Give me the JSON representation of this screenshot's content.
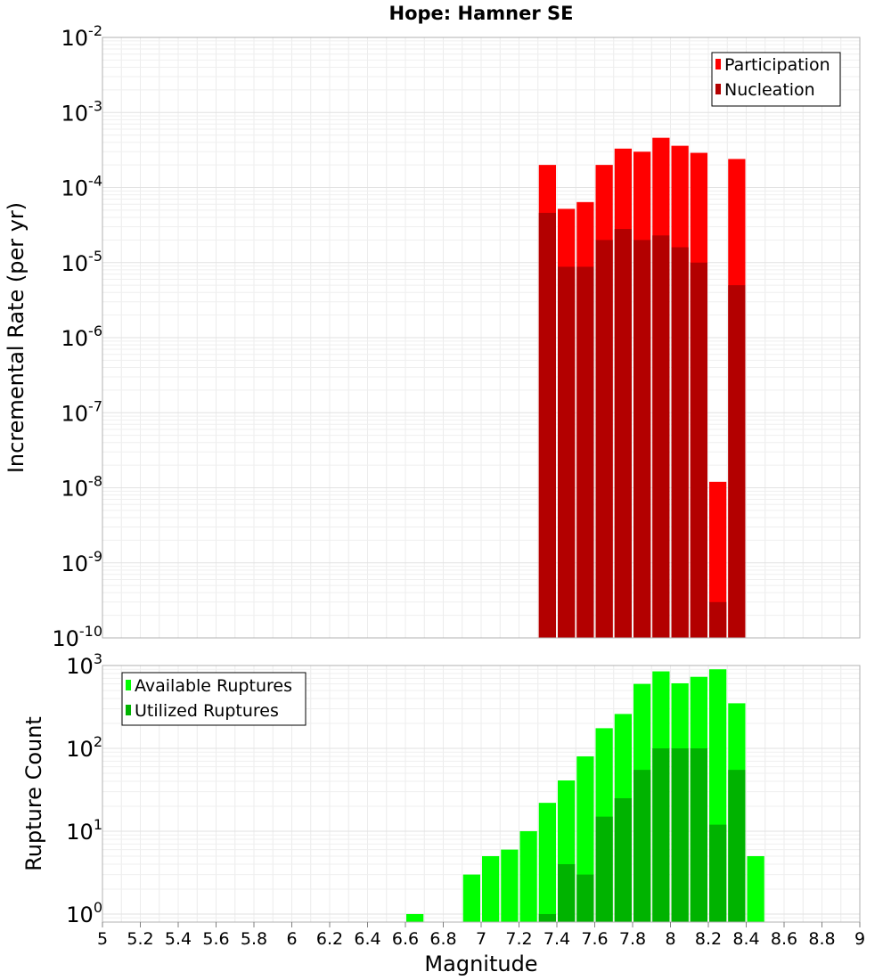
{
  "title": "Hope: Hamner SE",
  "xlabel": "Magnitude",
  "x_ticks": [
    "5",
    "5.2",
    "5.4",
    "5.6",
    "5.8",
    "6",
    "6.2",
    "6.4",
    "6.6",
    "6.8",
    "7",
    "7.2",
    "7.4",
    "7.6",
    "7.8",
    "8",
    "8.2",
    "8.4",
    "8.6",
    "8.8",
    "9"
  ],
  "chart_data": [
    {
      "type": "bar",
      "title": "Hope: Hamner SE",
      "xlabel": "Magnitude",
      "ylabel": "Incremental Rate (per yr)",
      "xlim": [
        5,
        9
      ],
      "ylim": [
        1e-10,
        0.01
      ],
      "y_scale": "log",
      "bin_width": 0.1,
      "grid": true,
      "legend_position": "top-right",
      "y_ticks": [
        {
          "base": "10",
          "exp": "-2"
        },
        {
          "base": "10",
          "exp": "-3"
        },
        {
          "base": "10",
          "exp": "-4"
        },
        {
          "base": "10",
          "exp": "-5"
        },
        {
          "base": "10",
          "exp": "-6"
        },
        {
          "base": "10",
          "exp": "-7"
        },
        {
          "base": "10",
          "exp": "-8"
        },
        {
          "base": "10",
          "exp": "-9"
        },
        {
          "base": "10",
          "exp": "-10"
        }
      ],
      "x": [
        7.35,
        7.45,
        7.55,
        7.65,
        7.75,
        7.85,
        7.95,
        8.05,
        8.15,
        8.25,
        8.35
      ],
      "series": [
        {
          "name": "Participation",
          "color": "#ff0000",
          "values": [
            0.0002,
            5.2e-05,
            6.4e-05,
            0.0002,
            0.00033,
            0.0003,
            0.00046,
            0.00036,
            0.00029,
            1.2e-08,
            0.00024
          ]
        },
        {
          "name": "Nucleation",
          "color": "#b30000",
          "values": [
            4.6e-05,
            8.8e-06,
            8.8e-06,
            2e-05,
            2.8e-05,
            2e-05,
            2.3e-05,
            1.6e-05,
            1e-05,
            3e-10,
            5e-06
          ]
        }
      ]
    },
    {
      "type": "bar",
      "xlabel": "Magnitude",
      "ylabel": "Rupture Count",
      "xlim": [
        5,
        9
      ],
      "ylim": [
        0.8,
        1000
      ],
      "y_scale": "log",
      "bin_width": 0.1,
      "grid": true,
      "legend_position": "top-left",
      "y_ticks": [
        {
          "base": "10",
          "exp": "3",
          "value": 1000
        },
        {
          "base": "10",
          "exp": "2",
          "value": 100
        },
        {
          "base": "10",
          "exp": "1",
          "value": 10
        },
        {
          "base": "10",
          "exp": "0",
          "value": 1
        }
      ],
      "series": [
        {
          "name": "Available Ruptures",
          "color": "#00ff00",
          "x": [
            6.65,
            6.95,
            7.05,
            7.15,
            7.25,
            7.35,
            7.45,
            7.55,
            7.65,
            7.75,
            7.85,
            7.95,
            8.05,
            8.15,
            8.25,
            8.35,
            8.45
          ],
          "values": [
            1,
            3,
            5,
            6,
            10,
            22,
            41,
            80,
            175,
            260,
            600,
            850,
            610,
            730,
            900,
            350,
            5
          ]
        },
        {
          "name": "Utilized Ruptures",
          "color": "#00b300",
          "x": [
            7.35,
            7.45,
            7.55,
            7.65,
            7.75,
            7.85,
            7.95,
            8.05,
            8.15,
            8.25,
            8.35
          ],
          "values": [
            1,
            4,
            3,
            15,
            25,
            55,
            100,
            100,
            100,
            12,
            55
          ]
        }
      ]
    }
  ]
}
